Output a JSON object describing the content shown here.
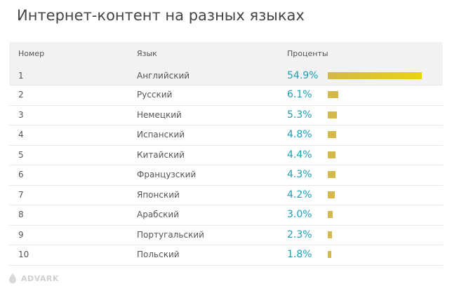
{
  "title": "Интернет-контент на разных языках",
  "logo_text": "ADVARK",
  "chart_data": {
    "type": "table",
    "columns": [
      "Номер",
      "Язык",
      "Проценты"
    ],
    "rows": [
      {
        "rank": "1",
        "language": "Английский",
        "percent": 54.9,
        "percent_label": "54.9%"
      },
      {
        "rank": "2",
        "language": "Русский",
        "percent": 6.1,
        "percent_label": "6.1%"
      },
      {
        "rank": "3",
        "language": "Немецкий",
        "percent": 5.3,
        "percent_label": "5.3%"
      },
      {
        "rank": "4",
        "language": "Испанский",
        "percent": 4.8,
        "percent_label": "4.8%"
      },
      {
        "rank": "5",
        "language": "Китайский",
        "percent": 4.4,
        "percent_label": "4.4%"
      },
      {
        "rank": "6",
        "language": "Французский",
        "percent": 4.3,
        "percent_label": "4.3%"
      },
      {
        "rank": "7",
        "language": "Японский",
        "percent": 4.2,
        "percent_label": "4.2%"
      },
      {
        "rank": "8",
        "language": "Арабский",
        "percent": 3.0,
        "percent_label": "3.0%"
      },
      {
        "rank": "9",
        "language": "Португальский",
        "percent": 2.3,
        "percent_label": "2.3%"
      },
      {
        "rank": "10",
        "language": "Польский",
        "percent": 1.8,
        "percent_label": "1.8%"
      }
    ],
    "bar_color": "#d4b84a",
    "top_bar_color": "#e9d412",
    "percent_color": "#1ca0b5"
  }
}
